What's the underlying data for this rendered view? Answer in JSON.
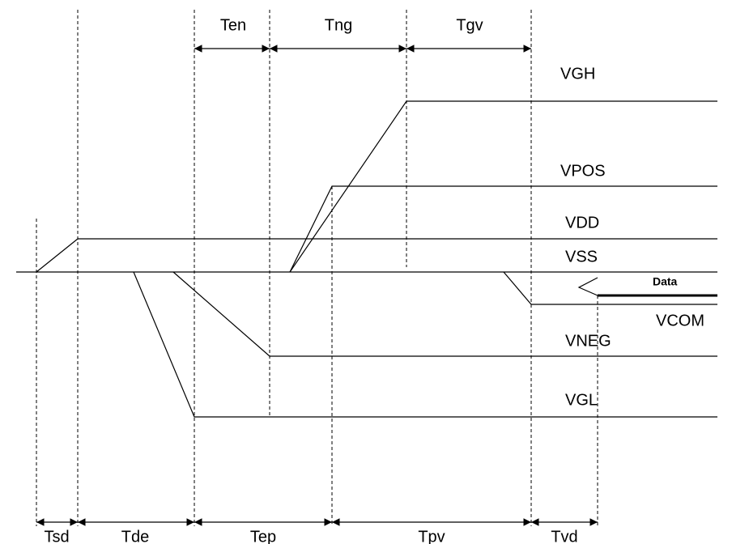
{
  "top_intervals": [
    "Ten",
    "Tng",
    "Tgv"
  ],
  "signals": [
    "VGH",
    "VPOS",
    "VDD",
    "VSS",
    "Data",
    "VCOM",
    "VNEG",
    "VGL"
  ],
  "bottom_intervals": [
    "Tsd",
    "Tde",
    "Tep",
    "Tpv",
    "Tvd"
  ]
}
